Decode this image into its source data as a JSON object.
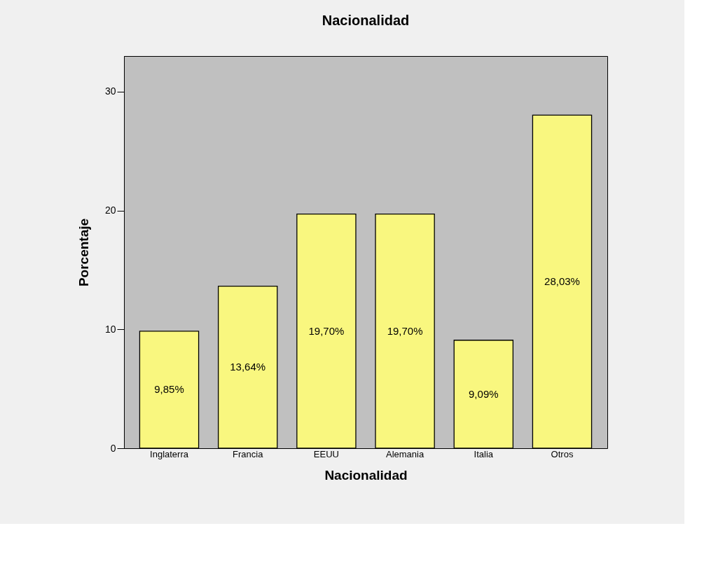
{
  "chart_data": {
    "type": "bar",
    "title": "Nacionalidad",
    "xlabel": "Nacionalidad",
    "ylabel": "Porcentaje",
    "categories": [
      "Inglaterra",
      "Francia",
      "EEUU",
      "Alemania",
      "Italia",
      "Otros"
    ],
    "values": [
      9.85,
      13.64,
      19.7,
      19.7,
      9.09,
      28.03
    ],
    "value_labels": [
      "9,85%",
      "13,64%",
      "19,70%",
      "19,70%",
      "9,09%",
      "28,03%"
    ],
    "color": "#f9f77f",
    "ylim": [
      0,
      33
    ],
    "yticks": [
      0,
      10,
      20,
      30
    ],
    "grid": false
  }
}
